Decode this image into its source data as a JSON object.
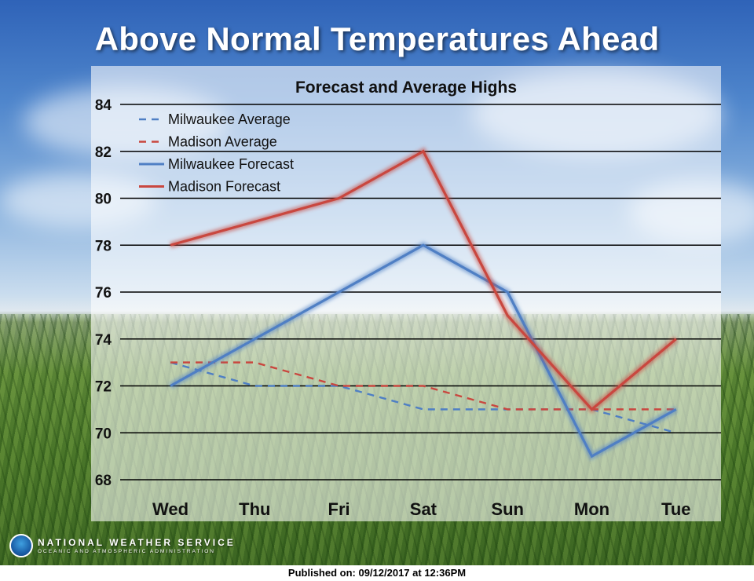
{
  "main_title": "Above Normal Temperatures Ahead",
  "footer": {
    "agency": "NATIONAL WEATHER SERVICE",
    "agency_sub": "OCEANIC AND ATMOSPHERIC ADMINISTRATION",
    "published": "Published on: 09/12/2017 at 12:36PM"
  },
  "colors": {
    "milwaukee": "#4f7fc4",
    "madison": "#c9473f",
    "grid": "#000000"
  },
  "chart_data": {
    "type": "line",
    "title": "Forecast and Average Highs",
    "xlabel": "",
    "ylabel": "",
    "categories": [
      "Wed",
      "Thu",
      "Fri",
      "Sat",
      "Sun",
      "Mon",
      "Tue"
    ],
    "ylim": [
      68,
      84
    ],
    "yticks": [
      68,
      70,
      72,
      74,
      76,
      78,
      80,
      82,
      84
    ],
    "legend_position": "top-left",
    "series": [
      {
        "name": "Milwaukee Average",
        "style": "dashed",
        "color": "#4f7fc4",
        "values": [
          73,
          72,
          72,
          71,
          71,
          71,
          70
        ]
      },
      {
        "name": "Madison Average",
        "style": "dashed",
        "color": "#c9473f",
        "values": [
          73,
          73,
          72,
          72,
          71,
          71,
          71
        ]
      },
      {
        "name": "Milwaukee Forecast",
        "style": "solid",
        "color": "#4f7fc4",
        "values": [
          72,
          74,
          76,
          78,
          76,
          69,
          71
        ]
      },
      {
        "name": "Madison Forecast",
        "style": "solid",
        "color": "#c9473f",
        "values": [
          78,
          79,
          80,
          82,
          75,
          71,
          74
        ]
      }
    ]
  }
}
